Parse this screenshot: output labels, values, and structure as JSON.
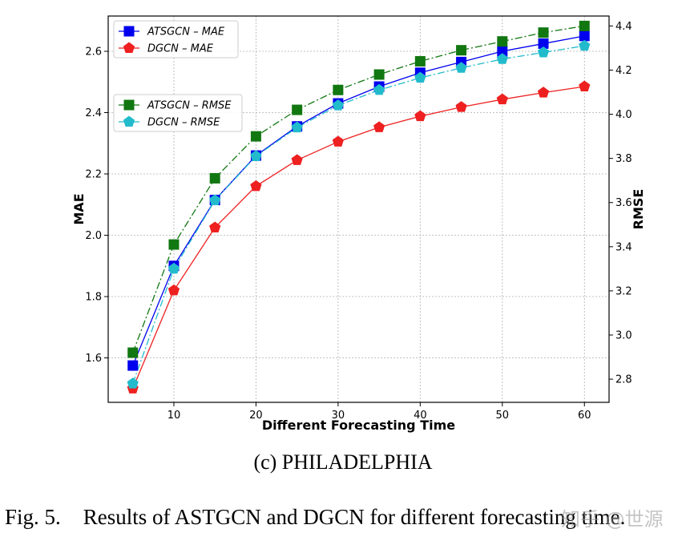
{
  "chart_data": {
    "type": "line",
    "x": [
      5,
      10,
      15,
      20,
      25,
      30,
      35,
      40,
      45,
      50,
      55,
      60
    ],
    "xlabel": "Different Forecasting Time",
    "ylabel_left": "MAE",
    "ylabel_right": "RMSE",
    "xlim": [
      2,
      63
    ],
    "ylim_left": [
      1.455,
      2.715
    ],
    "ylim_right": [
      2.695,
      4.445
    ],
    "xticks": [
      10,
      20,
      30,
      40,
      50,
      60
    ],
    "yticks_left": [
      "1.6",
      "1.8",
      "2.0",
      "2.2",
      "2.4",
      "2.6"
    ],
    "yticks_right": [
      "2.8",
      "3.0",
      "3.2",
      "3.4",
      "3.6",
      "3.8",
      "4.0",
      "4.2",
      "4.4"
    ],
    "grid": true,
    "series": [
      {
        "name": "ATSGCN – MAE",
        "axis": "left",
        "color": "#0000ee",
        "marker": "square",
        "linestyle": "solid",
        "values": [
          1.575,
          1.9,
          2.115,
          2.26,
          2.355,
          2.43,
          2.485,
          2.53,
          2.565,
          2.6,
          2.625,
          2.65
        ]
      },
      {
        "name": "DGCN – MAE",
        "axis": "left",
        "color": "#ee2020",
        "marker": "pentagon",
        "linestyle": "solid",
        "values": [
          1.5,
          1.82,
          2.025,
          2.16,
          2.245,
          2.305,
          2.352,
          2.388,
          2.418,
          2.443,
          2.465,
          2.485
        ]
      },
      {
        "name": "ATSGCN – RMSE",
        "axis": "right",
        "color": "#117711",
        "marker": "square",
        "linestyle": "dashdot",
        "values": [
          2.92,
          3.41,
          3.71,
          3.9,
          4.02,
          4.11,
          4.18,
          4.24,
          4.29,
          4.33,
          4.37,
          4.4
        ]
      },
      {
        "name": "DGCN – RMSE",
        "axis": "right",
        "color": "#22bbcc",
        "marker": "pentagon",
        "linestyle": "dashdot",
        "values": [
          2.78,
          3.3,
          3.61,
          3.81,
          3.94,
          4.04,
          4.11,
          4.165,
          4.21,
          4.25,
          4.28,
          4.31
        ]
      }
    ],
    "legends": [
      {
        "placement": "upper-left",
        "entries": [
          "ATSGCN – MAE",
          "DGCN – MAE"
        ]
      },
      {
        "placement": "middle-left",
        "entries": [
          "ATSGCN – RMSE",
          "DGCN – RMSE"
        ]
      }
    ]
  },
  "captions": {
    "subcaption": "(c) PHILADELPHIA",
    "figure_label": "Fig. 5.",
    "figure_text": "Results of ASTGCN and DGCN for different forecasting time."
  },
  "watermark": "知乎 @世源"
}
